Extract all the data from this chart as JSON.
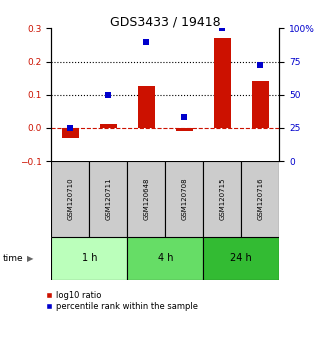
{
  "title": "GDS3433 / 19418",
  "samples": [
    "GSM120710",
    "GSM120711",
    "GSM120648",
    "GSM120708",
    "GSM120715",
    "GSM120716"
  ],
  "log10_ratio": [
    -0.03,
    0.012,
    0.125,
    -0.008,
    0.27,
    0.14
  ],
  "percentile_rank": [
    25,
    50,
    90,
    33,
    100,
    72
  ],
  "time_groups": [
    {
      "label": "1 h",
      "start": 0,
      "end": 2,
      "color": "#bbffbb"
    },
    {
      "label": "4 h",
      "start": 2,
      "end": 4,
      "color": "#66dd66"
    },
    {
      "label": "24 h",
      "start": 4,
      "end": 6,
      "color": "#33bb33"
    }
  ],
  "bar_color": "#cc1100",
  "dot_color": "#0000cc",
  "left_ylim": [
    -0.1,
    0.3
  ],
  "right_ylim": [
    0,
    100
  ],
  "left_yticks": [
    -0.1,
    0.0,
    0.1,
    0.2,
    0.3
  ],
  "right_yticks": [
    0,
    25,
    50,
    75,
    100
  ],
  "right_yticklabels": [
    "0",
    "25",
    "50",
    "75",
    "100%"
  ],
  "hlines": [
    0.1,
    0.2
  ],
  "zero_line_color": "#cc1100",
  "dotted_line_color": "#000000",
  "background_color": "#ffffff",
  "plot_bg_color": "#ffffff",
  "sample_box_color": "#cccccc",
  "title_fontsize": 9,
  "tick_fontsize": 6.5,
  "sample_fontsize": 5,
  "time_fontsize": 7,
  "legend_fontsize": 6
}
